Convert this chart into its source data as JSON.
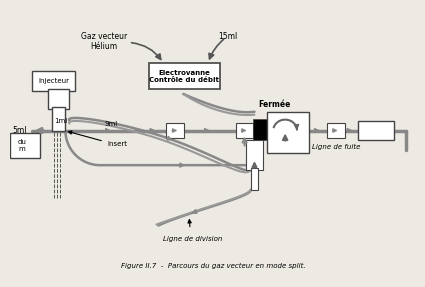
{
  "bg_color": "#ede9e3",
  "line_color": "#555555",
  "pipe_col": "#888888",
  "title": "Figure II.7  -  Parcours du gaz vecteur en mode split.",
  "labels": {
    "gaz_vecteur": "Gaz vecteur\nHélium",
    "15ml": "15ml",
    "electrovanne": "Electrovanne\nContrôle du débit",
    "injecteur": "Injecteur",
    "5ml": "5ml",
    "1ml": "1ml",
    "9ml": "9ml",
    "insert": "Insert",
    "fermee": "Fermée",
    "ligne_fuite": "Ligne de fuite",
    "ligne_division": "Ligne de division",
    "du_m": "du\nm"
  }
}
